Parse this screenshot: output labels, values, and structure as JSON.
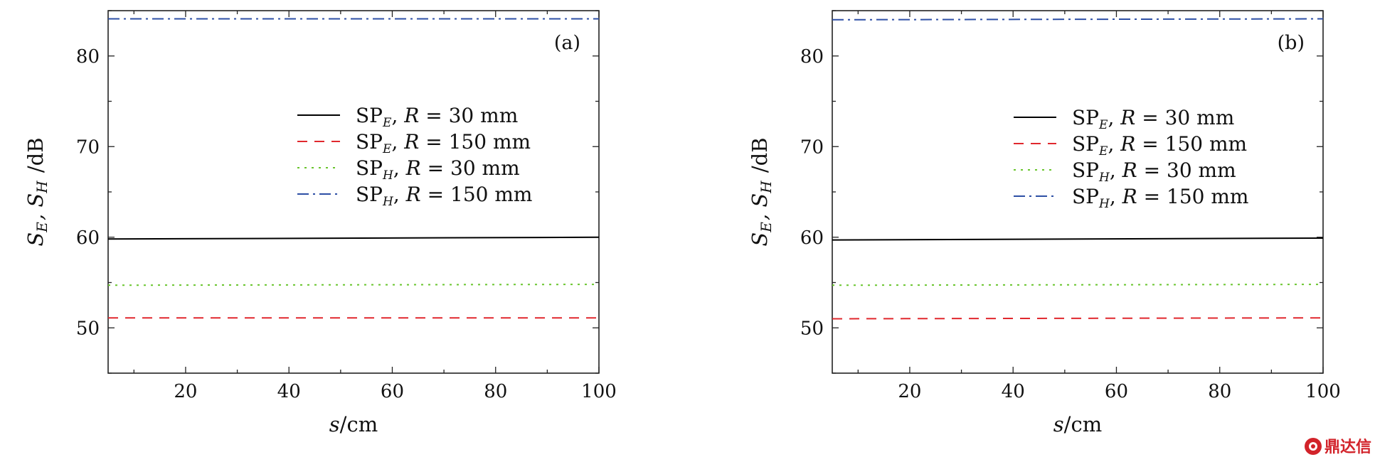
{
  "watermark": {
    "text": "鼎达信"
  },
  "chart_data": [
    {
      "type": "line",
      "panel_label": "(a)",
      "xlabel": "s/cm",
      "ylabel": "S_E, S_H /dB",
      "xlim": [
        5,
        100
      ],
      "ylim": [
        45,
        85
      ],
      "xticks": [
        20,
        40,
        60,
        80,
        100
      ],
      "yticks": [
        50,
        60,
        70,
        80
      ],
      "grid": false,
      "legend_position": "center-right",
      "series": [
        {
          "name": "SP_E, R = 30 mm",
          "label": {
            "sp": "SP",
            "sub": "E",
            "rest": ", R = 30 mm"
          },
          "style": "solid",
          "color": "#000000",
          "x": [
            5,
            100
          ],
          "y": [
            59.8,
            60.0
          ]
        },
        {
          "name": "SP_E, R = 150 mm",
          "label": {
            "sp": "SP",
            "sub": "E",
            "rest": ", R = 150 mm"
          },
          "style": "dash",
          "color": "#e0282e",
          "x": [
            5,
            100
          ],
          "y": [
            51.1,
            51.1
          ]
        },
        {
          "name": "SP_H, R = 30 mm",
          "label": {
            "sp": "SP",
            "sub": "H",
            "rest": ", R = 30 mm"
          },
          "style": "dot",
          "color": "#69c52d",
          "x": [
            5,
            100
          ],
          "y": [
            54.7,
            54.8
          ]
        },
        {
          "name": "SP_H, R = 150 mm",
          "label": {
            "sp": "SP",
            "sub": "H",
            "rest": ", R = 150 mm"
          },
          "style": "dashdot",
          "color": "#2d4fa5",
          "x": [
            5,
            100
          ],
          "y": [
            84.1,
            84.1
          ]
        }
      ]
    },
    {
      "type": "line",
      "panel_label": "(b)",
      "xlabel": "s/cm",
      "ylabel": "S_E, S_H /dB",
      "xlim": [
        5,
        100
      ],
      "ylim": [
        45,
        85
      ],
      "xticks": [
        20,
        40,
        60,
        80,
        100
      ],
      "yticks": [
        50,
        60,
        70,
        80
      ],
      "grid": false,
      "legend_position": "center-right",
      "series": [
        {
          "name": "SP_E, R = 30 mm",
          "label": {
            "sp": "SP",
            "sub": "E",
            "rest": ", R = 30 mm"
          },
          "style": "solid",
          "color": "#000000",
          "x": [
            5,
            100
          ],
          "y": [
            59.7,
            59.9
          ]
        },
        {
          "name": "SP_E, R = 150 mm",
          "label": {
            "sp": "SP",
            "sub": "E",
            "rest": ", R = 150 mm"
          },
          "style": "dash",
          "color": "#e0282e",
          "x": [
            5,
            100
          ],
          "y": [
            51.0,
            51.1
          ]
        },
        {
          "name": "SP_H, R = 30 mm",
          "label": {
            "sp": "SP",
            "sub": "H",
            "rest": ", R = 30 mm"
          },
          "style": "dot",
          "color": "#69c52d",
          "x": [
            5,
            100
          ],
          "y": [
            54.7,
            54.8
          ]
        },
        {
          "name": "SP_H, R = 150 mm",
          "label": {
            "sp": "SP",
            "sub": "H",
            "rest": ", R = 150 mm"
          },
          "style": "dashdot",
          "color": "#2d4fa5",
          "x": [
            5,
            100
          ],
          "y": [
            84.0,
            84.1
          ]
        }
      ]
    }
  ]
}
